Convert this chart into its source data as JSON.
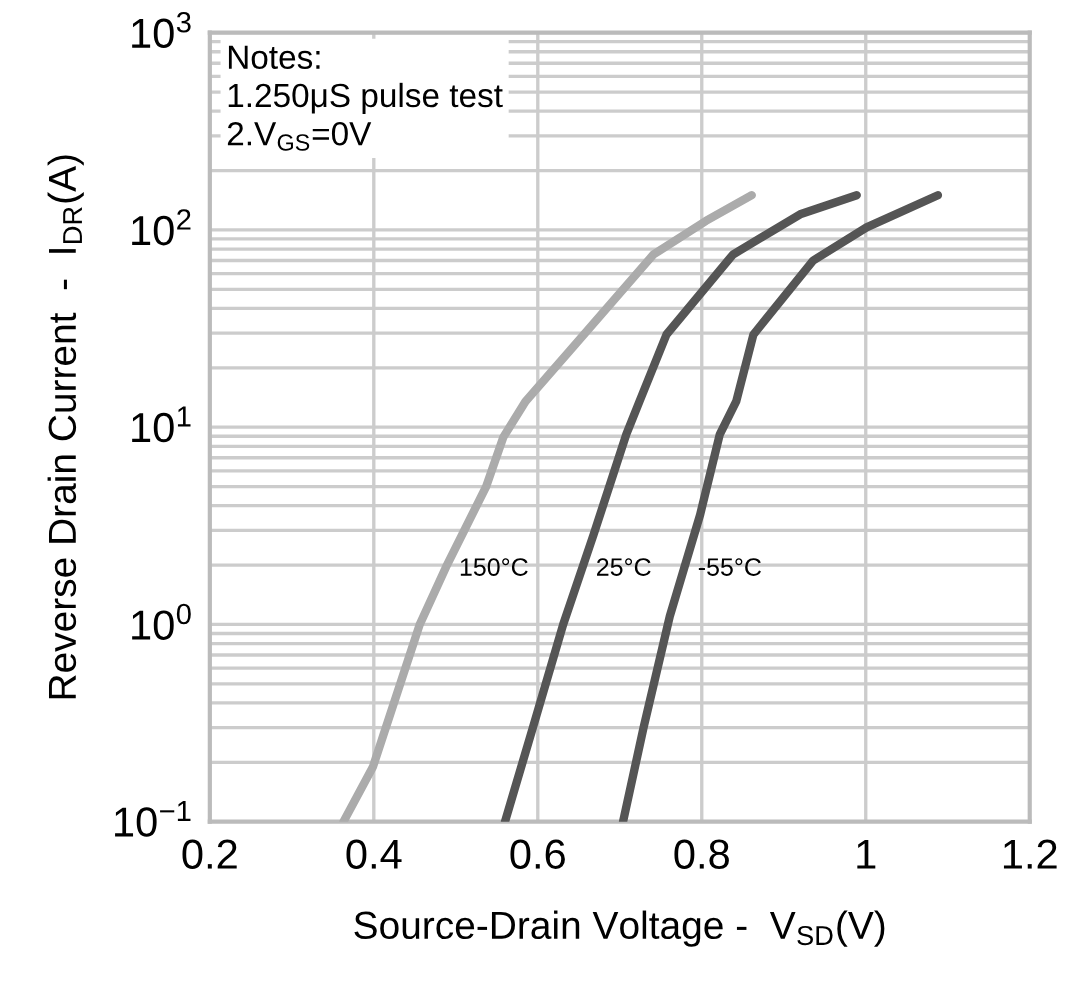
{
  "chart_data": {
    "type": "line",
    "xlabel": "Source-Drain Voltage -  V$_{SD}$(V)",
    "ylabel": "Reverse Drain Current  -  I$_{DR}$(A)",
    "log": "y",
    "grid": true,
    "marker": "none",
    "line_style": "solid",
    "xlim": [
      0.2,
      1.2
    ],
    "xticks": [
      0.2,
      0.4,
      0.6,
      0.8,
      1,
      1.2
    ],
    "ylim": [
      0.1,
      1000
    ],
    "yticks": [
      {
        "value": 0.1,
        "label": "10$^{−1}$"
      },
      {
        "value": 1,
        "label": "10$^{0}$"
      },
      {
        "value": 10,
        "label": "10$^{1}$"
      },
      {
        "value": 100,
        "label": "10$^{2}$"
      },
      {
        "value": 1000,
        "label": "10$^{3}$"
      }
    ],
    "series": [
      {
        "name": "150°C",
        "color": "#ababab",
        "x": [
          0.363,
          0.399,
          0.456,
          0.488,
          0.537,
          0.558,
          0.585,
          0.643,
          0.741,
          0.805,
          0.861
        ],
        "values": [
          0.1,
          0.19,
          1.0,
          1.95,
          5.0,
          8.9,
          13.5,
          25.5,
          75,
          111,
          150
        ]
      },
      {
        "name": "25°C",
        "color": "#555555",
        "x": [
          0.56,
          0.594,
          0.631,
          0.668,
          0.708,
          0.724,
          0.757,
          0.838,
          0.92,
          0.989
        ],
        "values": [
          0.1,
          0.3,
          1.0,
          2.85,
          9.2,
          13.5,
          29.5,
          75,
          120,
          150
        ]
      },
      {
        "name": "-55°C",
        "color": "#555555",
        "x": [
          0.704,
          0.729,
          0.761,
          0.798,
          0.822,
          0.842,
          0.863,
          0.936,
          1.001,
          1.088
        ],
        "values": [
          0.1,
          0.3,
          1.1,
          3.6,
          9.2,
          13.5,
          29.5,
          70,
          103,
          150
        ]
      }
    ],
    "annotations": [
      "Notes:\n1.250μS pulse test\n2.V$_{GS}$=0V"
    ]
  }
}
